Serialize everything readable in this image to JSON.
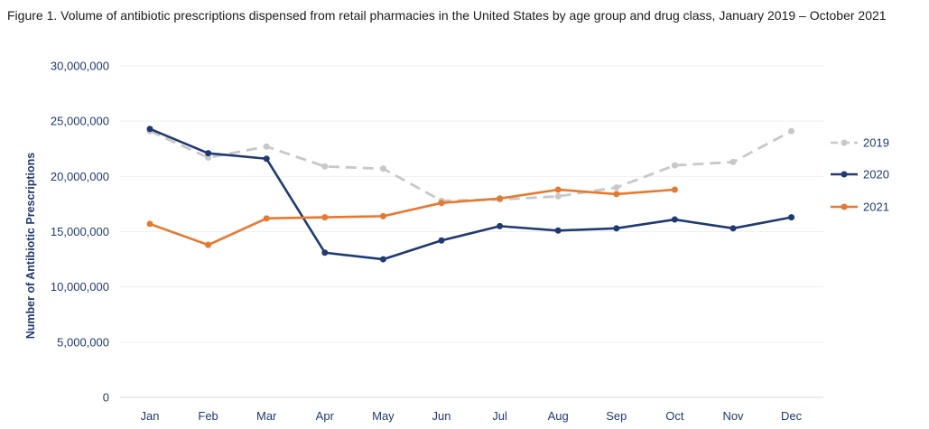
{
  "chart_data": {
    "type": "line",
    "title": "Figure 1. Volume of antibiotic prescriptions dispensed from retail pharmacies in the United States by age group and drug class, January 2019 – October 2021",
    "xlabel": "",
    "ylabel": "Number of Antibiotic Prescriptions",
    "categories": [
      "Jan",
      "Feb",
      "Mar",
      "Apr",
      "May",
      "Jun",
      "Jul",
      "Aug",
      "Sep",
      "Oct",
      "Nov",
      "Dec"
    ],
    "ylim": [
      0,
      30000000
    ],
    "yticks": [
      0,
      5000000,
      10000000,
      15000000,
      20000000,
      25000000,
      30000000
    ],
    "ytick_labels": [
      "0",
      "5,000,000",
      "10,000,000",
      "15,000,000",
      "20,000,000",
      "25,000,000",
      "30,000,000"
    ],
    "grid": true,
    "legend_position": "right",
    "series": [
      {
        "name": "2019",
        "color": "#c8c8c8",
        "dashed": true,
        "values": [
          24100000,
          21700000,
          22700000,
          20900000,
          20700000,
          17800000,
          17900000,
          18200000,
          19000000,
          21000000,
          21300000,
          24100000
        ]
      },
      {
        "name": "2020",
        "color": "#1f3a73",
        "dashed": false,
        "values": [
          24300000,
          22100000,
          21600000,
          13100000,
          12500000,
          14200000,
          15500000,
          15100000,
          15300000,
          16100000,
          15300000,
          16300000
        ]
      },
      {
        "name": "2021",
        "color": "#e8782d",
        "dashed": false,
        "values": [
          15700000,
          13800000,
          16200000,
          16300000,
          16400000,
          17600000,
          18000000,
          18800000,
          18400000,
          18800000,
          null,
          null
        ]
      }
    ]
  }
}
